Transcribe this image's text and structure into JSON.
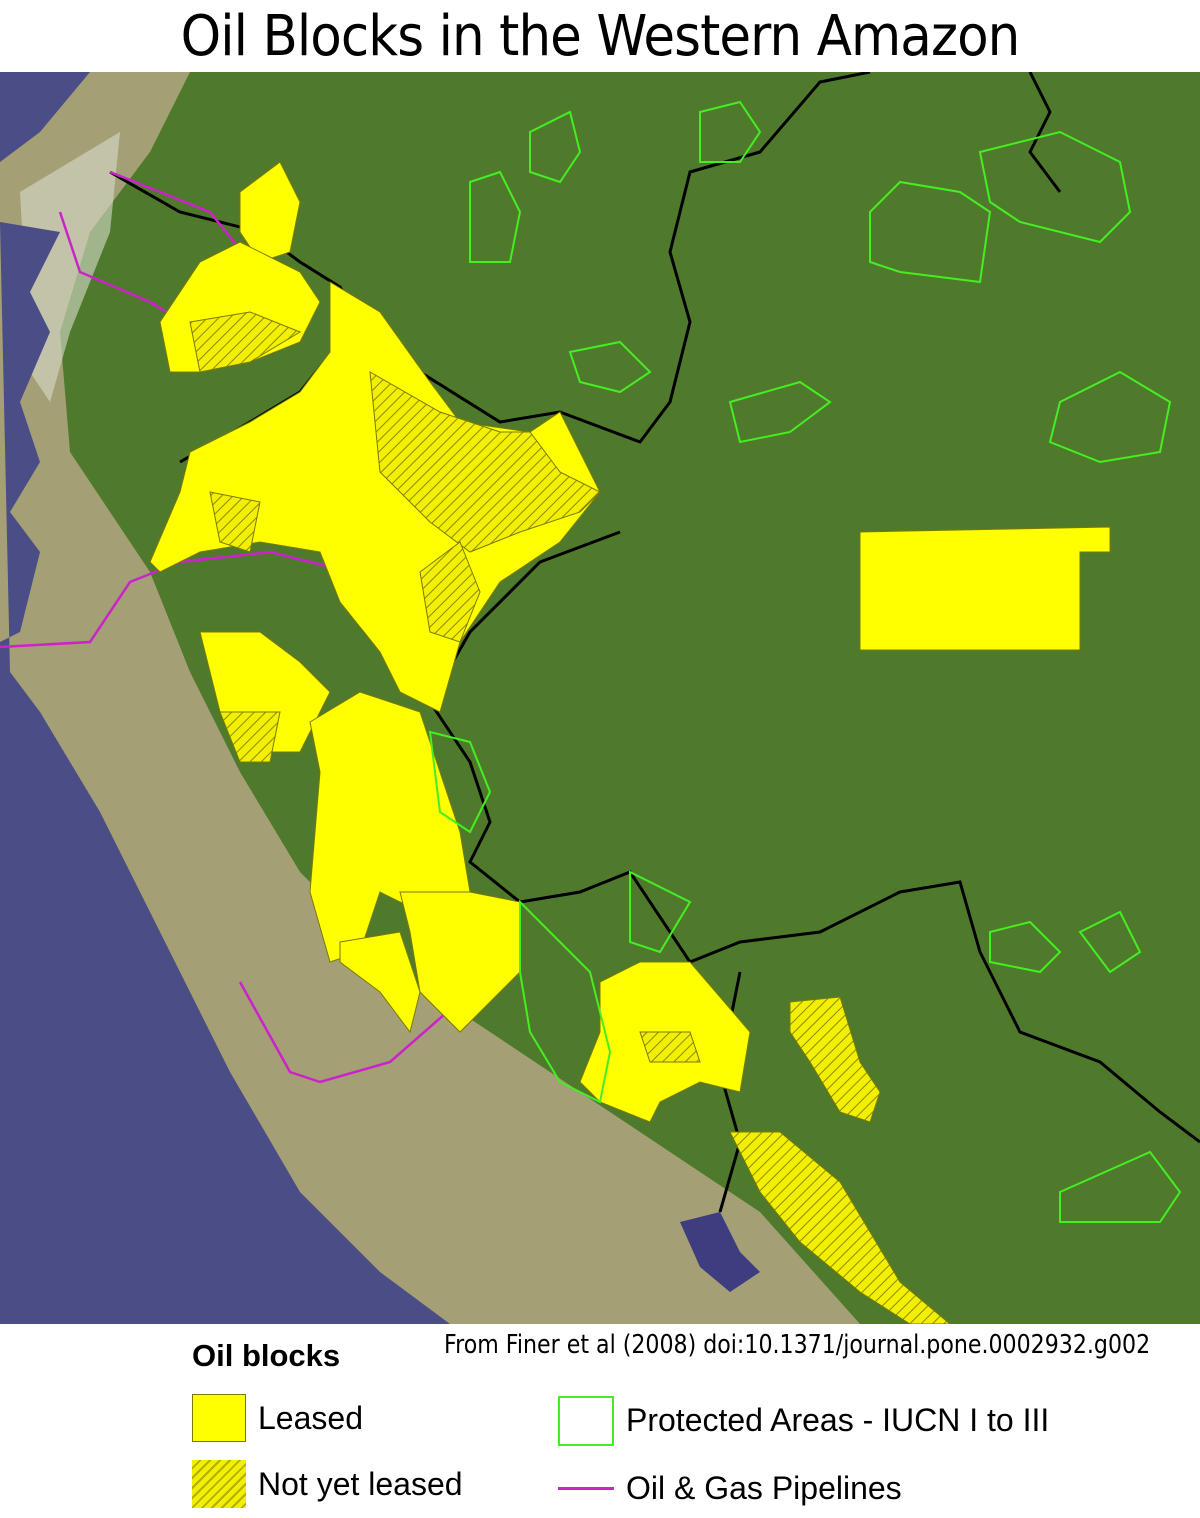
{
  "title": "Oil Blocks in the Western Amazon",
  "legend": {
    "heading": "Oil blocks",
    "credit": "From Finer et al (2008) doi:10.1371/journal.pone.0002932.g002",
    "items": [
      {
        "label": "Leased",
        "symbol": "solid-yellow-fill",
        "color": "#ffff00"
      },
      {
        "label": "Not yet leased",
        "symbol": "hatched-yellow-fill",
        "color": "#e8e800"
      },
      {
        "label": "Protected Areas - IUCN I to III",
        "symbol": "green-outline",
        "color": "#44ee22"
      },
      {
        "label": "Oil & Gas Pipelines",
        "symbol": "magenta-line",
        "color": "#cc22cc"
      }
    ]
  },
  "colors": {
    "ocean": "#4a4d86",
    "forest": "#4f7a2c",
    "andes": "#b8ab88",
    "border": "#000000"
  }
}
